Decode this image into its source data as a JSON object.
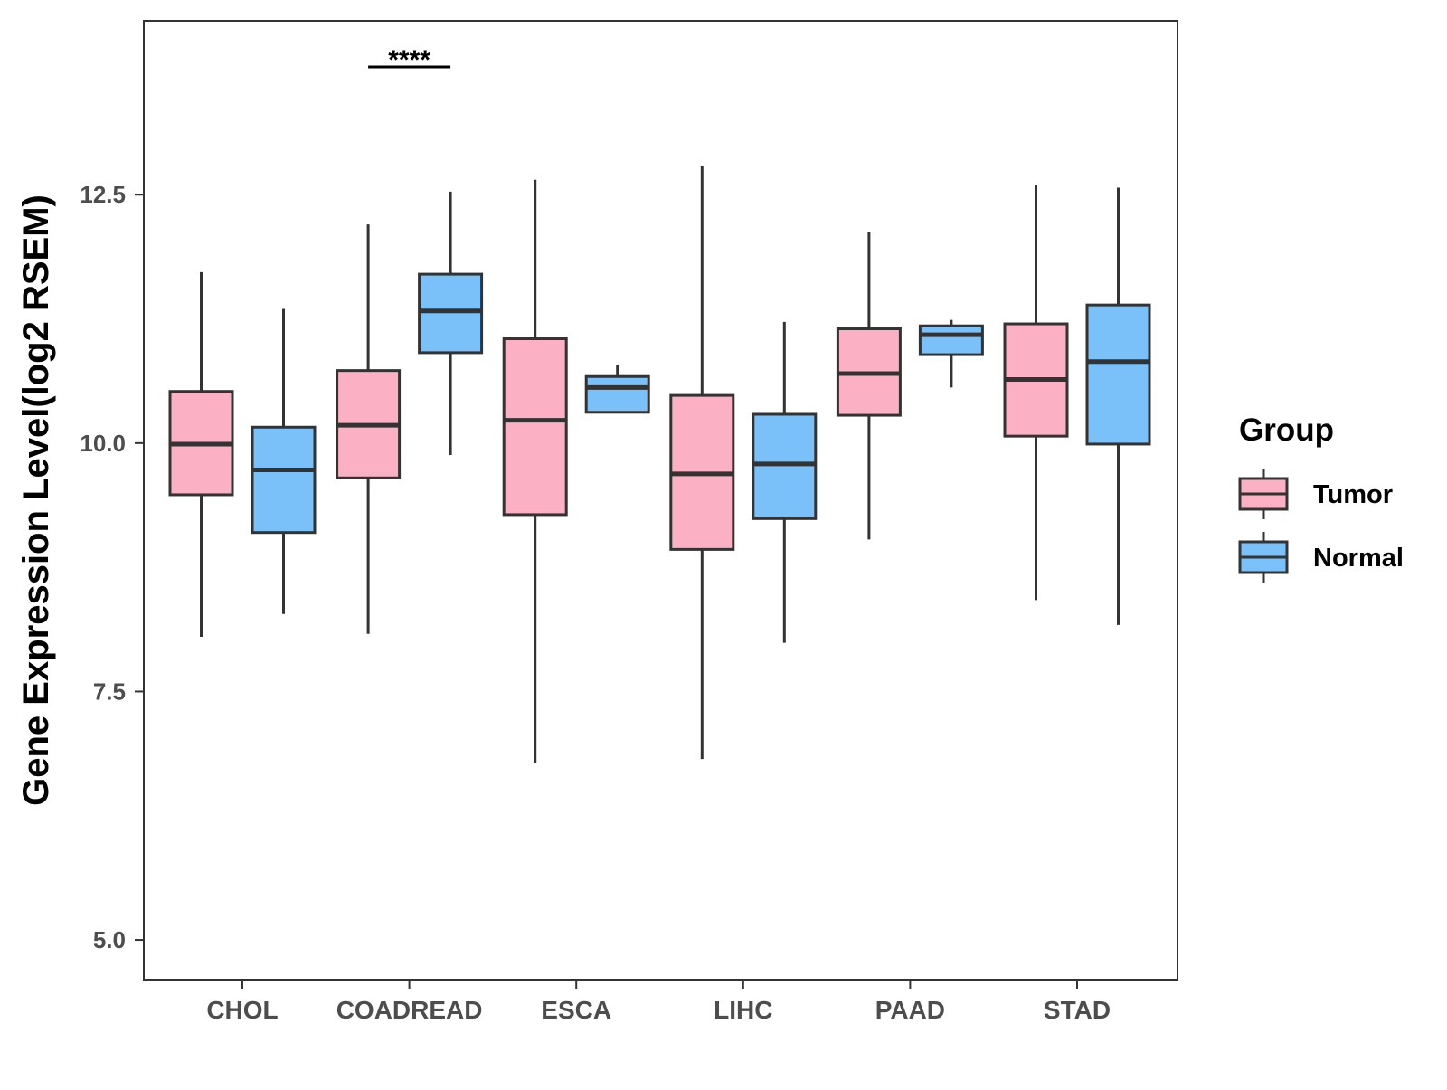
{
  "chart_data": {
    "type": "boxplot",
    "title": "",
    "xlabel": "",
    "ylabel": "Gene Expression Level(log2 RSEM)",
    "ylim": [
      4.6,
      14.25
    ],
    "yticks": [
      5.0,
      7.5,
      10.0,
      12.5
    ],
    "ytick_labels": [
      "5.0",
      "7.5",
      "10.0",
      "12.5"
    ],
    "grid": false,
    "categories": [
      "CHOL",
      "COADREAD",
      "ESCA",
      "LIHC",
      "PAAD",
      "STAD"
    ],
    "legend": {
      "title": "Group",
      "position": "right",
      "entries": [
        {
          "name": "Tumor",
          "color": "#fbb1c3"
        },
        {
          "name": "Normal",
          "color": "#79c1f8"
        }
      ]
    },
    "series": [
      {
        "name": "Tumor",
        "color": "#fbb1c3",
        "boxes": [
          {
            "min": 8.05,
            "q1": 9.48,
            "median": 9.99,
            "q3": 10.52,
            "max": 11.72
          },
          {
            "min": 8.08,
            "q1": 9.65,
            "median": 10.18,
            "q3": 10.73,
            "max": 12.2
          },
          {
            "min": 6.78,
            "q1": 9.28,
            "median": 10.23,
            "q3": 11.05,
            "max": 12.65
          },
          {
            "min": 6.82,
            "q1": 8.93,
            "median": 9.69,
            "q3": 10.48,
            "max": 12.79
          },
          {
            "min": 9.03,
            "q1": 10.28,
            "median": 10.7,
            "q3": 11.15,
            "max": 12.12
          },
          {
            "min": 8.42,
            "q1": 10.07,
            "median": 10.64,
            "q3": 11.2,
            "max": 12.6
          }
        ]
      },
      {
        "name": "Normal",
        "color": "#79c1f8",
        "boxes": [
          {
            "min": 8.28,
            "q1": 9.1,
            "median": 9.73,
            "q3": 10.16,
            "max": 11.35
          },
          {
            "min": 9.88,
            "q1": 10.91,
            "median": 11.33,
            "q3": 11.7,
            "max": 12.53
          },
          {
            "min": 10.31,
            "q1": 10.31,
            "median": 10.56,
            "q3": 10.67,
            "max": 10.79
          },
          {
            "min": 7.99,
            "q1": 9.24,
            "median": 9.79,
            "q3": 10.29,
            "max": 11.22
          },
          {
            "min": 10.56,
            "q1": 10.89,
            "median": 11.09,
            "q3": 11.18,
            "max": 11.24
          },
          {
            "min": 8.17,
            "q1": 9.99,
            "median": 10.82,
            "q3": 11.39,
            "max": 12.57
          }
        ]
      }
    ],
    "annotations": [
      {
        "category": "COADREAD",
        "text": "****"
      }
    ]
  }
}
